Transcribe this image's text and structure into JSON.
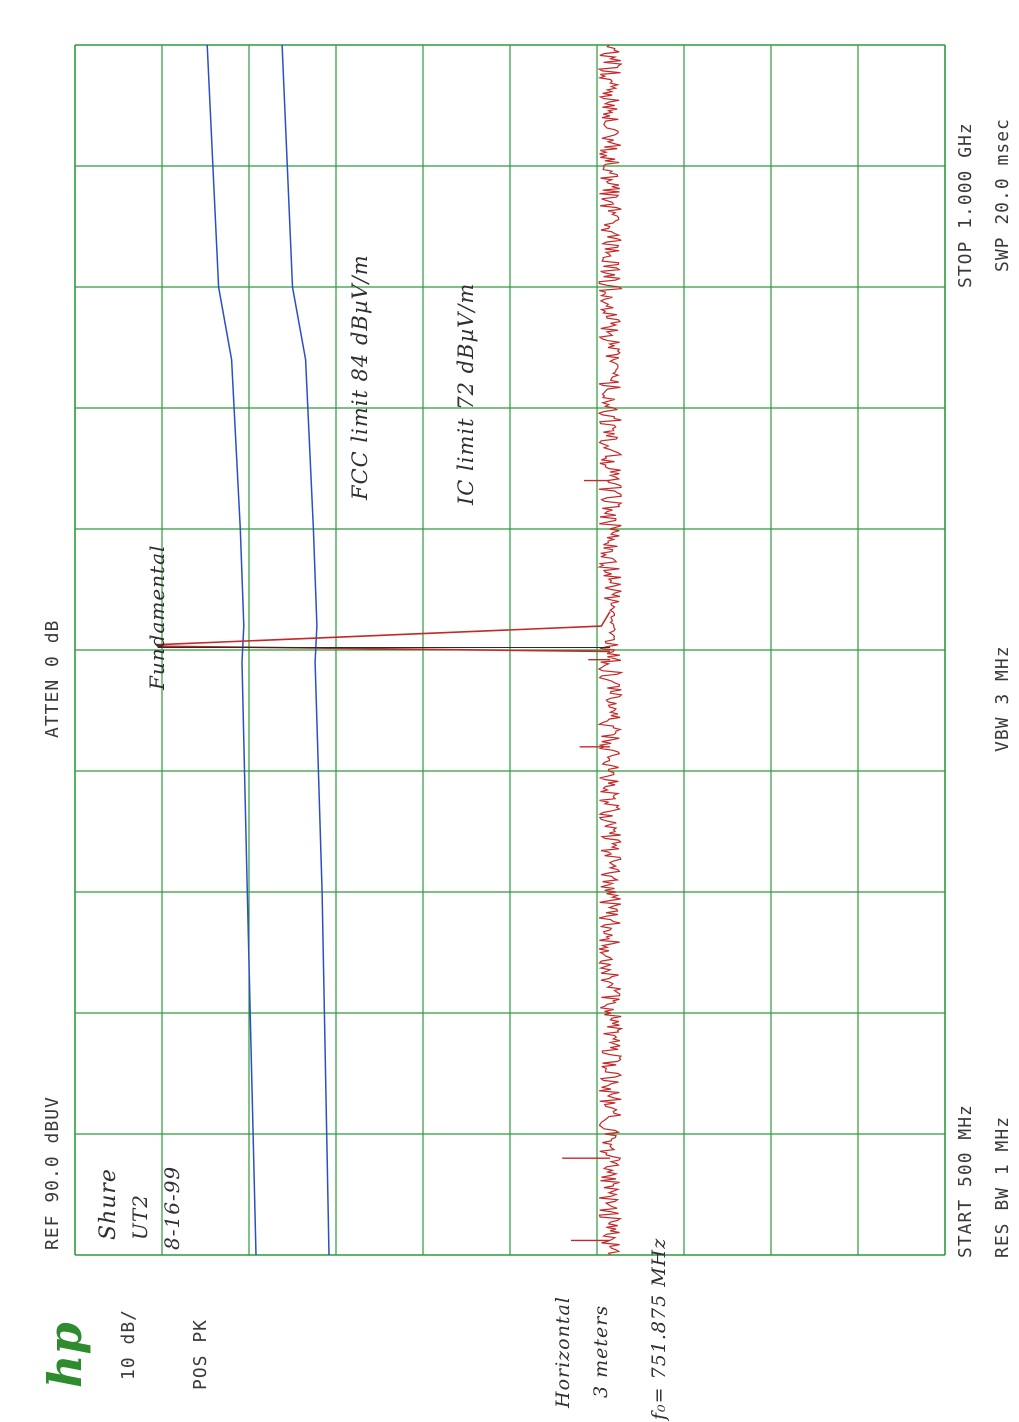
{
  "instrument": {
    "brand": "hp",
    "ref_level": "REF  90.0 dBUV",
    "scale": "10 dB/",
    "detector": "POS PK",
    "atten": "ATTEN 0 dB",
    "start": "START 500 MHz",
    "stop": "STOP 1.000 GHz",
    "res_bw": "RES BW 1 MHz",
    "vbw": "VBW 3 MHz",
    "sweep": "SWP 20.0 msec"
  },
  "notes": {
    "device_line1": "Shure",
    "device_line2": "UT2",
    "date": "8-16-99",
    "polarization": "Horizontal",
    "distance": "3 meters",
    "fundamental_freq": "f₀= 751.875 MHz",
    "fundamental_label": "Fundamental",
    "fcc_label": "FCC  limit  84 dBµV/m",
    "ic_label": "IC  limit  72 dBµV/m"
  },
  "colors": {
    "grid": "#2e9a3c",
    "limit": "#2b4fc4",
    "trace": "#c42828",
    "text": "#3a3a3a"
  },
  "chart_data": {
    "type": "line",
    "x_unit": "MHz",
    "y_unit": "dBµV",
    "xlim": [
      500,
      1000
    ],
    "ylim": [
      -10,
      90
    ],
    "grid": true,
    "series": [
      {
        "name": "FCC  limit  84 dBµV/m",
        "x": [
          500,
          650,
          745,
          760,
          800,
          870,
          900,
          1000
        ],
        "y": [
          69.2,
          70.2,
          70.8,
          70.6,
          71.0,
          72.0,
          73.5,
          74.8
        ]
      },
      {
        "name": "IC  limit  72 dBµV/m",
        "x": [
          500,
          650,
          745,
          760,
          800,
          870,
          900,
          1000
        ],
        "y": [
          60.8,
          61.6,
          62.4,
          62.2,
          62.6,
          63.5,
          65.0,
          66.2
        ]
      },
      {
        "name": "Fundamental",
        "noise_floor": 28.5,
        "peak_x": 751.875,
        "peak_y": 80.5,
        "spurs": [
          {
            "x": 506.0,
            "y": 33.0
          },
          {
            "x": 540.0,
            "y": 34.0
          },
          {
            "x": 710.0,
            "y": 32.0
          },
          {
            "x": 746.0,
            "y": 31.0
          },
          {
            "x": 820.0,
            "y": 31.5
          }
        ]
      }
    ]
  }
}
